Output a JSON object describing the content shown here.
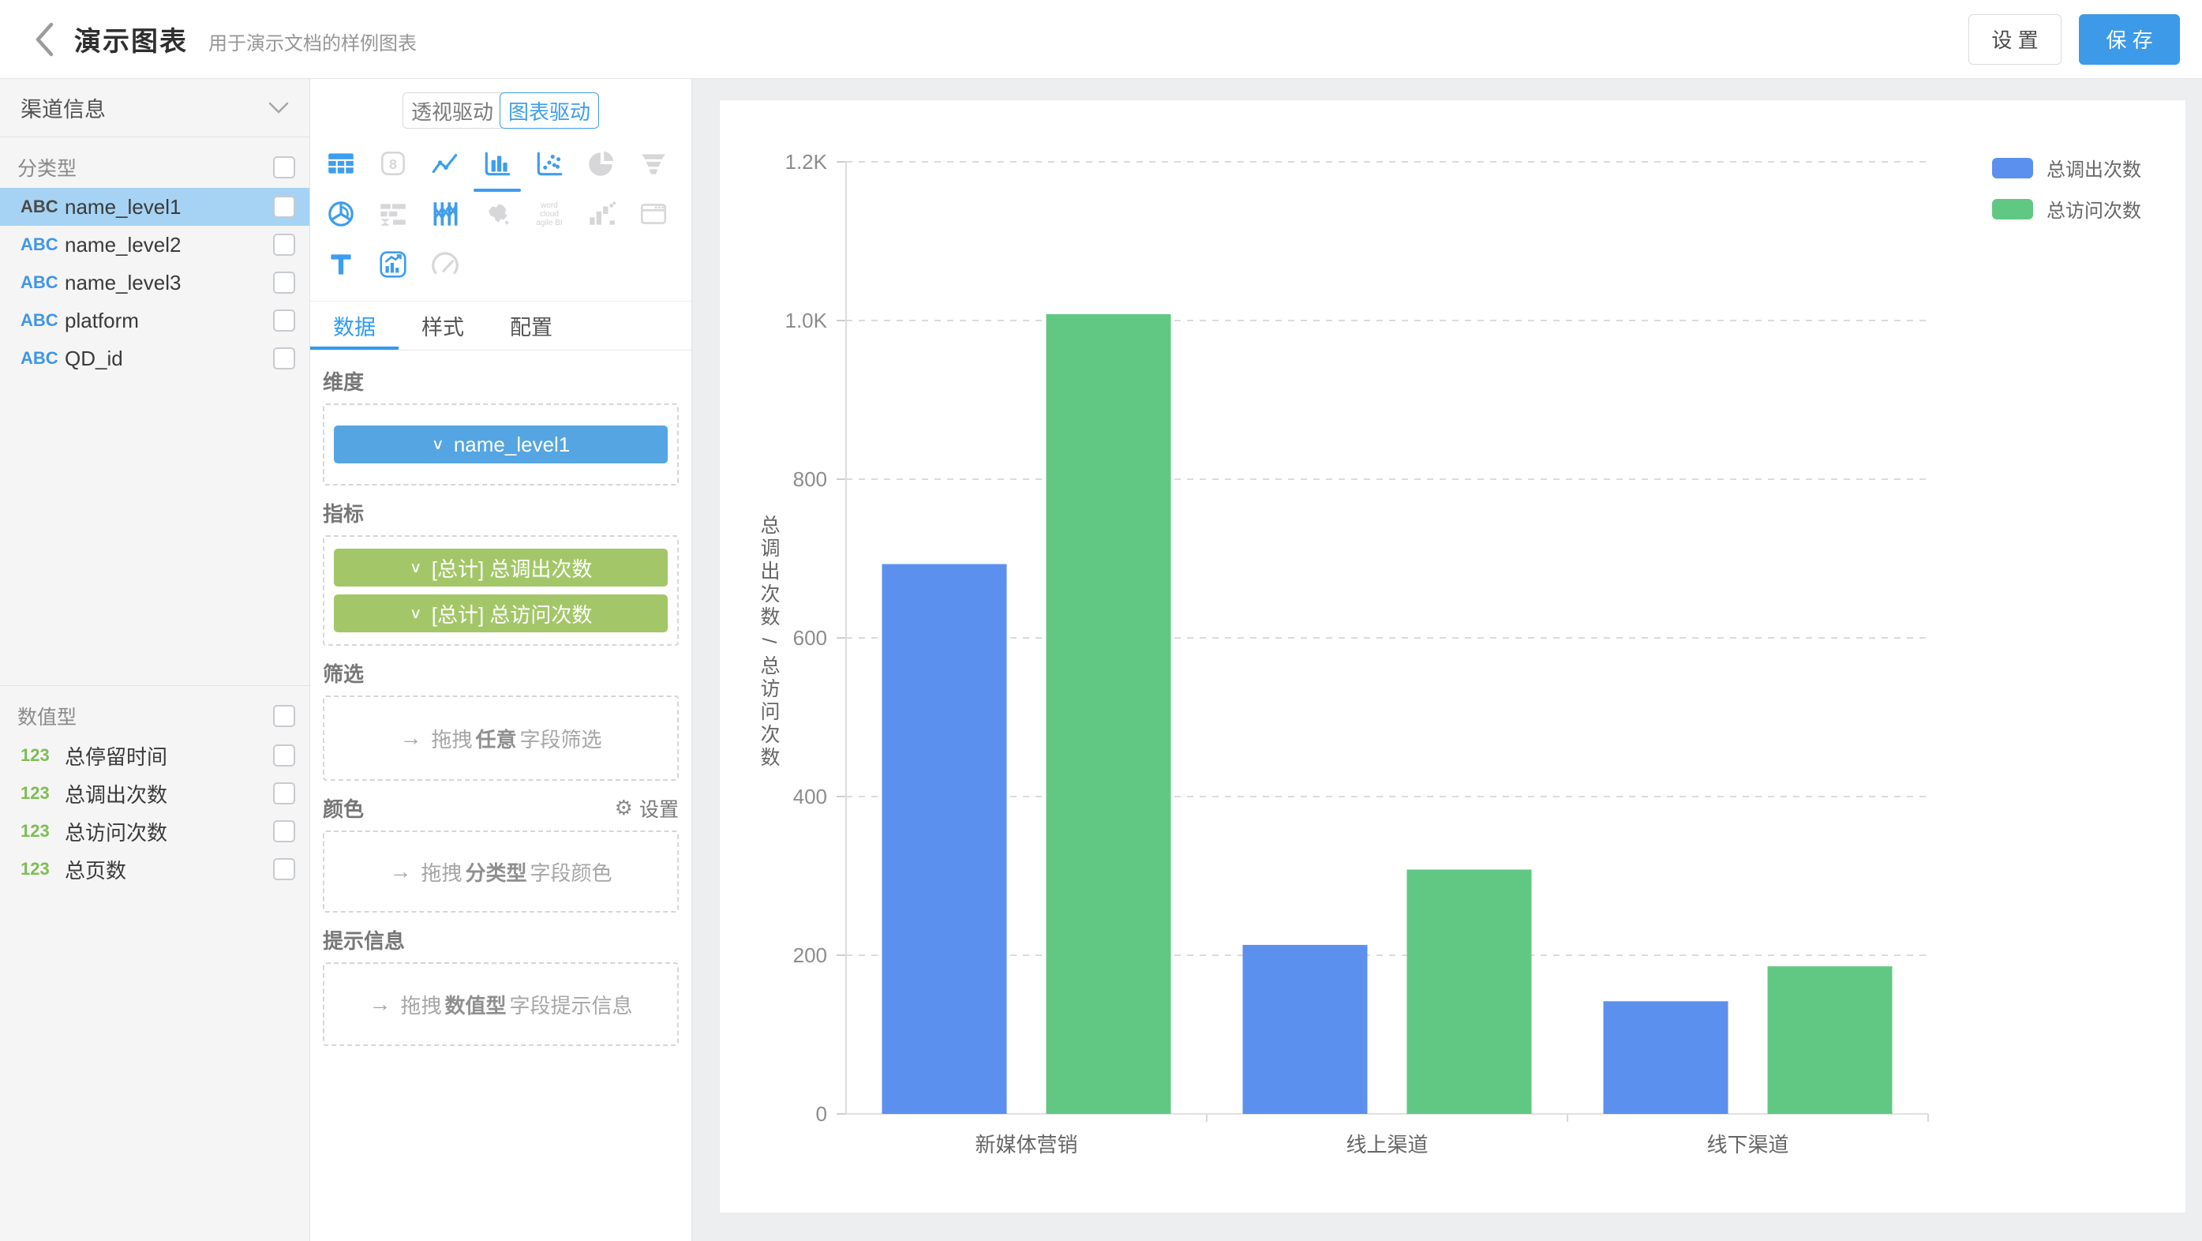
{
  "header": {
    "title": "演示图表",
    "subtitle": "用于演示文档的样例图表",
    "settings_label": "设 置",
    "save_label": "保 存"
  },
  "icons": {
    "back": "‹",
    "chevron_down": "∨",
    "gear": "⚙",
    "drag_arrow": "→"
  },
  "sidebar": {
    "dataset_selector": {
      "label": "渠道信息"
    },
    "category_section": {
      "label": "分类型",
      "fields": [
        {
          "prefix": "ABC",
          "name": "name_level1",
          "selected": true
        },
        {
          "prefix": "ABC",
          "name": "name_level2",
          "selected": false
        },
        {
          "prefix": "ABC",
          "name": "name_level3",
          "selected": false
        },
        {
          "prefix": "ABC",
          "name": "platform",
          "selected": false
        },
        {
          "prefix": "ABC",
          "name": "QD_id",
          "selected": false
        }
      ]
    },
    "numeric_section": {
      "label": "数值型",
      "fields": [
        {
          "prefix": "123",
          "name": "总停留时间",
          "selected": false
        },
        {
          "prefix": "123",
          "name": "总调出次数",
          "selected": false
        },
        {
          "prefix": "123",
          "name": "总访问次数",
          "selected": false
        },
        {
          "prefix": "123",
          "name": "总页数",
          "selected": false
        }
      ]
    }
  },
  "builder": {
    "mode_toggle": {
      "left": "透视驱动",
      "right": "图表驱动",
      "active": "图表驱动"
    },
    "chart_types": [
      {
        "name": "table",
        "enabled": true,
        "selected": false
      },
      {
        "name": "metric-card",
        "enabled": false,
        "selected": false
      },
      {
        "name": "line-chart",
        "enabled": true,
        "selected": false
      },
      {
        "name": "bar-chart",
        "enabled": true,
        "selected": true
      },
      {
        "name": "scatter-plot",
        "enabled": true,
        "selected": false
      },
      {
        "name": "pie-chart",
        "enabled": false,
        "selected": false
      },
      {
        "name": "funnel-chart",
        "enabled": false,
        "selected": false
      },
      {
        "name": "radar-chart",
        "enabled": true,
        "selected": false
      },
      {
        "name": "gantt-chart",
        "enabled": false,
        "selected": false
      },
      {
        "name": "parallel-coordinates",
        "enabled": true,
        "selected": false
      },
      {
        "name": "china-map",
        "enabled": false,
        "selected": false
      },
      {
        "name": "word-cloud",
        "enabled": false,
        "selected": false
      },
      {
        "name": "waterfall-chart",
        "enabled": false,
        "selected": false
      },
      {
        "name": "iframe-window",
        "enabled": false,
        "selected": false
      },
      {
        "name": "text-label",
        "enabled": true,
        "selected": false
      },
      {
        "name": "combo-chart",
        "enabled": true,
        "selected": false
      },
      {
        "name": "gauge-chart",
        "enabled": false,
        "selected": false
      }
    ],
    "word_cloud_text": [
      "word",
      "cloud",
      "agile BI"
    ],
    "tabs": [
      {
        "label": "数据",
        "active": true
      },
      {
        "label": "样式",
        "active": false
      },
      {
        "label": "配置",
        "active": false
      }
    ],
    "sections": {
      "dimension": {
        "label": "维度",
        "chips": [
          {
            "text": "name_level1",
            "color": "blue"
          }
        ]
      },
      "metrics": {
        "label": "指标",
        "chips": [
          {
            "text": "[总计] 总调出次数",
            "color": "green"
          },
          {
            "text": "[总计] 总访问次数",
            "color": "green"
          }
        ]
      },
      "filter": {
        "label": "筛选",
        "placeholder_parts": [
          "拖拽",
          "任意",
          "字段筛选"
        ]
      },
      "color": {
        "label": "颜色",
        "action": "设置",
        "placeholder_parts": [
          "拖拽",
          "分类型",
          "字段颜色"
        ]
      },
      "tooltip": {
        "label": "提示信息",
        "placeholder_parts": [
          "拖拽",
          "数值型",
          "字段提示信息"
        ]
      }
    }
  },
  "chart_data": {
    "type": "bar",
    "title": "",
    "categories": [
      "新媒体营销",
      "线上渠道",
      "线下渠道"
    ],
    "series": [
      {
        "name": "总调出次数",
        "color": "#5B90EE",
        "values": [
          693,
          213,
          142
        ]
      },
      {
        "name": "总访问次数",
        "color": "#61C883",
        "values": [
          1008,
          308,
          186
        ]
      }
    ],
    "xlabel": "",
    "ylabel": "总调出次数 / 总访问次数",
    "ylim": [
      0,
      1200
    ],
    "yticks": [
      {
        "value": 0,
        "label": "0"
      },
      {
        "value": 200,
        "label": "200"
      },
      {
        "value": 400,
        "label": "400"
      },
      {
        "value": 600,
        "label": "600"
      },
      {
        "value": 800,
        "label": "800"
      },
      {
        "value": 1000,
        "label": "1.0K"
      },
      {
        "value": 1200,
        "label": "1.2K"
      }
    ],
    "grid": "horizontal-dashed",
    "legend_position": "top-right"
  },
  "colors": {
    "accent_blue": "#3D9DEE",
    "save_button": "#3D9AE8",
    "chip_blue": "#55A5E2",
    "chip_green": "#A3C768",
    "series_blue": "#5B90EE",
    "series_green": "#61C883",
    "selected_row": "#A6D3F3",
    "abc_prefix": "#3E97E6",
    "num_prefix": "#7DBE50"
  }
}
